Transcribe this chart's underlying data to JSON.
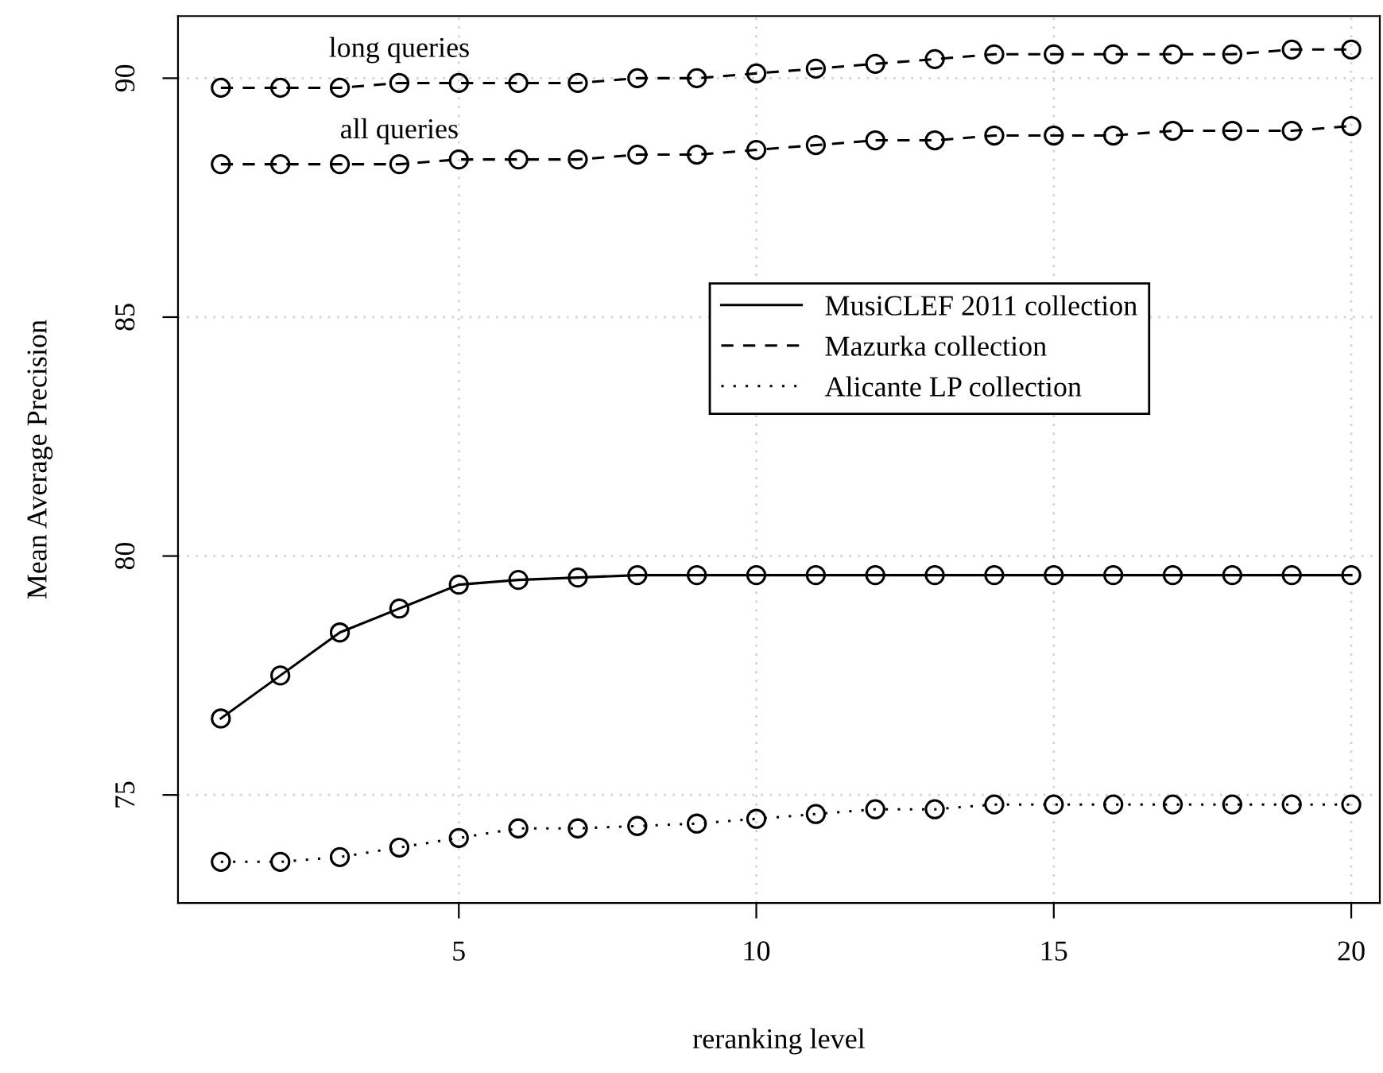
{
  "chart_data": {
    "type": "line",
    "xlabel": "reranking level",
    "ylabel": "Mean Average Precision",
    "x": [
      1,
      2,
      3,
      4,
      5,
      6,
      7,
      8,
      9,
      10,
      11,
      12,
      13,
      14,
      15,
      16,
      17,
      18,
      19,
      20
    ],
    "series": [
      {
        "name": "MusiCLEF 2011 collection",
        "color": "#000000",
        "line_style": "solid",
        "values": [
          76.6,
          77.5,
          78.4,
          78.9,
          79.4,
          79.5,
          79.55,
          79.6,
          79.6,
          79.6,
          79.6,
          79.6,
          79.6,
          79.6,
          79.6,
          79.6,
          79.6,
          79.6,
          79.6,
          79.6
        ]
      },
      {
        "name": "Mazurka collection",
        "color": "#000000",
        "line_style": "dashed",
        "values": [
          89.8,
          89.8,
          89.8,
          89.9,
          89.9,
          89.9,
          89.9,
          90.0,
          90.0,
          90.1,
          90.2,
          90.3,
          90.4,
          90.5,
          90.5,
          90.5,
          90.5,
          90.5,
          90.6,
          90.6
        ]
      },
      {
        "name": "Alicante LP collection",
        "color": "#000000",
        "line_style": "dotted",
        "values": [
          73.6,
          73.6,
          73.7,
          73.9,
          74.1,
          74.3,
          74.3,
          74.35,
          74.4,
          74.5,
          74.6,
          74.7,
          74.7,
          74.8,
          74.8,
          74.8,
          74.8,
          74.8,
          74.8,
          74.8
        ]
      },
      {
        "color": "#000000",
        "line_style": "dashed",
        "values": [
          88.2,
          88.2,
          88.2,
          88.2,
          88.3,
          88.3,
          88.3,
          88.4,
          88.4,
          88.5,
          88.6,
          88.7,
          88.7,
          88.8,
          88.8,
          88.8,
          88.9,
          88.9,
          88.9,
          89.0
        ]
      }
    ],
    "annotations": [
      {
        "text": "long queries",
        "x": 4,
        "y": 89.9
      },
      {
        "text": "all queries",
        "x": 4,
        "y": 88.2
      }
    ],
    "xlim": [
      0.28,
      20.48
    ],
    "ylim": [
      72.74,
      91.3
    ],
    "xticks": [
      5,
      10,
      15,
      20
    ],
    "yticks": [
      75,
      80,
      85,
      90
    ],
    "marker": "circle",
    "grid": true,
    "legend": "right"
  }
}
